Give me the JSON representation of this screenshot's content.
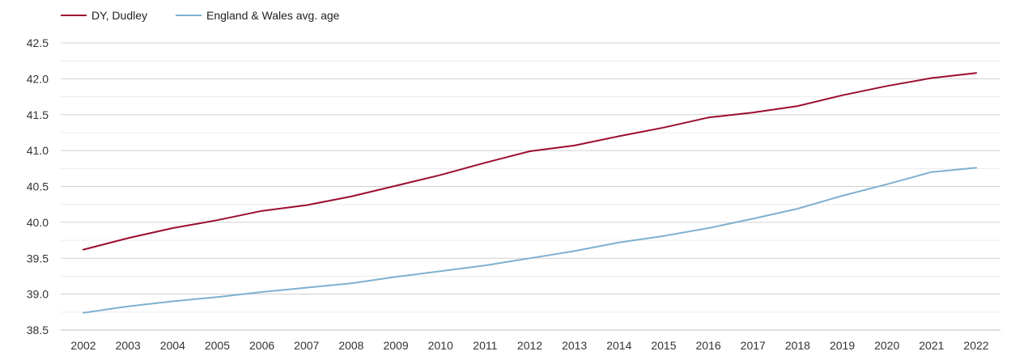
{
  "chart_data": {
    "type": "line",
    "title": "",
    "xlabel": "",
    "ylabel": "",
    "x": [
      "2002",
      "2003",
      "2004",
      "2005",
      "2006",
      "2007",
      "2008",
      "2009",
      "2010",
      "2011",
      "2012",
      "2013",
      "2014",
      "2015",
      "2016",
      "2017",
      "2018",
      "2019",
      "2020",
      "2021",
      "2022"
    ],
    "ylim": [
      38.5,
      42.5
    ],
    "y_ticks": [
      "38.5",
      "39.0",
      "39.5",
      "40.0",
      "40.5",
      "41.0",
      "41.5",
      "42.0",
      "42.5"
    ],
    "grid": true,
    "legend_position": "top-left",
    "series": [
      {
        "name": "DY, Dudley",
        "color": "#9b0d2e",
        "values": [
          39.62,
          39.78,
          39.92,
          40.03,
          40.16,
          40.24,
          40.36,
          40.51,
          40.66,
          40.83,
          40.99,
          41.07,
          41.2,
          41.32,
          41.46,
          41.53,
          41.62,
          41.77,
          41.9,
          42.01,
          42.08
        ]
      },
      {
        "name": "England & Wales avg. age",
        "color": "#7fb0d0",
        "values": [
          38.74,
          38.83,
          38.9,
          38.96,
          39.03,
          39.09,
          39.15,
          39.24,
          39.32,
          39.4,
          39.5,
          39.6,
          39.72,
          39.81,
          39.92,
          40.05,
          40.19,
          40.37,
          40.53,
          40.7,
          40.76
        ]
      }
    ]
  }
}
